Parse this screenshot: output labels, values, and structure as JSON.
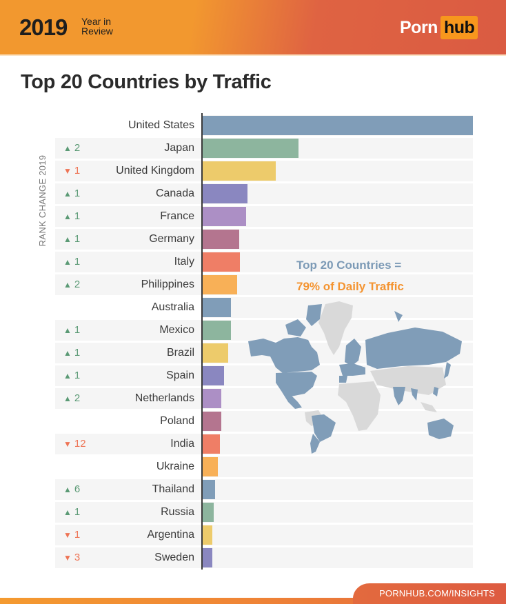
{
  "header": {
    "year": "2019",
    "year_in_review_line1": "Year in",
    "year_in_review_line2": "Review",
    "logo_part1": "Porn",
    "logo_part2": "hub"
  },
  "title": "Top 20 Countries by Traffic",
  "rank_axis_label": "RANK CHANGE 2019",
  "callout": {
    "line1": "Top 20 Countries =",
    "line2": "79% of Daily Traffic"
  },
  "footer": {
    "url": "PORNHUB.COM/INSIGHTS"
  },
  "colors": {
    "header_orange": "#F2982F",
    "header_red": "#DA5B42",
    "logo_hub_bg": "#F7971D",
    "up": "#5B9A75",
    "down": "#EE7455",
    "callout_blue": "#7C9AB6",
    "callout_orange": "#F49431",
    "map_highlight": "#809DB8",
    "map_other": "#D9D9D9",
    "bar_palette": [
      "#809DB8",
      "#8DB59E",
      "#EDCB6B",
      "#8A87C0",
      "#AC8FC5",
      "#B4758F",
      "#EF7E66",
      "#F8B057"
    ]
  },
  "chart_data": {
    "type": "bar",
    "orientation": "horizontal",
    "title": "Top 20 Countries by Traffic",
    "xlabel": "",
    "ylabel": "",
    "value_unit": "relative traffic (bar length, % of United States; no numeric axis shown)",
    "categories": [
      "United States",
      "Japan",
      "United Kingdom",
      "Canada",
      "France",
      "Germany",
      "Italy",
      "Philippines",
      "Australia",
      "Mexico",
      "Brazil",
      "Spain",
      "Netherlands",
      "Poland",
      "India",
      "Ukraine",
      "Thailand",
      "Russia",
      "Argentina",
      "Sweden"
    ],
    "values": [
      100,
      35.4,
      27.0,
      16.5,
      16.0,
      13.5,
      13.7,
      12.7,
      10.4,
      10.4,
      9.4,
      7.9,
      6.9,
      6.9,
      6.4,
      5.6,
      4.6,
      4.1,
      3.6,
      3.6
    ],
    "rank_change_2019": [
      {
        "country": "United States",
        "direction": "",
        "value": ""
      },
      {
        "country": "Japan",
        "direction": "up",
        "value": "2"
      },
      {
        "country": "United Kingdom",
        "direction": "down",
        "value": "1"
      },
      {
        "country": "Canada",
        "direction": "up",
        "value": "1"
      },
      {
        "country": "France",
        "direction": "up",
        "value": "1"
      },
      {
        "country": "Germany",
        "direction": "up",
        "value": "1"
      },
      {
        "country": "Italy",
        "direction": "up",
        "value": "1"
      },
      {
        "country": "Philippines",
        "direction": "up",
        "value": "2"
      },
      {
        "country": "Australia",
        "direction": "",
        "value": ""
      },
      {
        "country": "Mexico",
        "direction": "up",
        "value": "1"
      },
      {
        "country": "Brazil",
        "direction": "up",
        "value": "1"
      },
      {
        "country": "Spain",
        "direction": "up",
        "value": "1"
      },
      {
        "country": "Netherlands",
        "direction": "up",
        "value": "2"
      },
      {
        "country": "Poland",
        "direction": "",
        "value": ""
      },
      {
        "country": "India",
        "direction": "down",
        "value": "12"
      },
      {
        "country": "Ukraine",
        "direction": "",
        "value": ""
      },
      {
        "country": "Thailand",
        "direction": "up",
        "value": "6"
      },
      {
        "country": "Russia",
        "direction": "up",
        "value": "1"
      },
      {
        "country": "Argentina",
        "direction": "down",
        "value": "1"
      },
      {
        "country": "Sweden",
        "direction": "down",
        "value": "3"
      }
    ],
    "annotations": [
      "Top 20 Countries = 79% of Daily Traffic"
    ],
    "grid": false,
    "legend": "none",
    "inset": "world map highlighting the top 20 countries in blue"
  },
  "rows": [
    {
      "country": "United States",
      "change": "",
      "dir": "",
      "px": 392,
      "color": "#809DB8"
    },
    {
      "country": "Japan",
      "change": "2",
      "dir": "up",
      "px": 139,
      "color": "#8DB59E"
    },
    {
      "country": "United Kingdom",
      "change": "1",
      "dir": "down",
      "px": 106,
      "color": "#EDCB6B"
    },
    {
      "country": "Canada",
      "change": "1",
      "dir": "up",
      "px": 65,
      "color": "#8A87C0"
    },
    {
      "country": "France",
      "change": "1",
      "dir": "up",
      "px": 63,
      "color": "#AC8FC5"
    },
    {
      "country": "Germany",
      "change": "1",
      "dir": "up",
      "px": 53,
      "color": "#B4758F"
    },
    {
      "country": "Italy",
      "change": "1",
      "dir": "up",
      "px": 54,
      "color": "#EF7E66"
    },
    {
      "country": "Philippines",
      "change": "2",
      "dir": "up",
      "px": 50,
      "color": "#F8B057"
    },
    {
      "country": "Australia",
      "change": "",
      "dir": "",
      "px": 41,
      "color": "#809DB8"
    },
    {
      "country": "Mexico",
      "change": "1",
      "dir": "up",
      "px": 41,
      "color": "#8DB59E"
    },
    {
      "country": "Brazil",
      "change": "1",
      "dir": "up",
      "px": 37,
      "color": "#EDCB6B"
    },
    {
      "country": "Spain",
      "change": "1",
      "dir": "up",
      "px": 31,
      "color": "#8A87C0"
    },
    {
      "country": "Netherlands",
      "change": "2",
      "dir": "up",
      "px": 27,
      "color": "#AC8FC5"
    },
    {
      "country": "Poland",
      "change": "",
      "dir": "",
      "px": 27,
      "color": "#B4758F"
    },
    {
      "country": "India",
      "change": "12",
      "dir": "down",
      "px": 25,
      "color": "#EF7E66"
    },
    {
      "country": "Ukraine",
      "change": "",
      "dir": "",
      "px": 22,
      "color": "#F8B057"
    },
    {
      "country": "Thailand",
      "change": "6",
      "dir": "up",
      "px": 18,
      "color": "#809DB8"
    },
    {
      "country": "Russia",
      "change": "1",
      "dir": "up",
      "px": 16,
      "color": "#8DB59E"
    },
    {
      "country": "Argentina",
      "change": "1",
      "dir": "down",
      "px": 14,
      "color": "#EDCB6B"
    },
    {
      "country": "Sweden",
      "change": "3",
      "dir": "down",
      "px": 14,
      "color": "#8A87C0"
    }
  ],
  "icons": {
    "up": "▲",
    "down": "▼"
  }
}
